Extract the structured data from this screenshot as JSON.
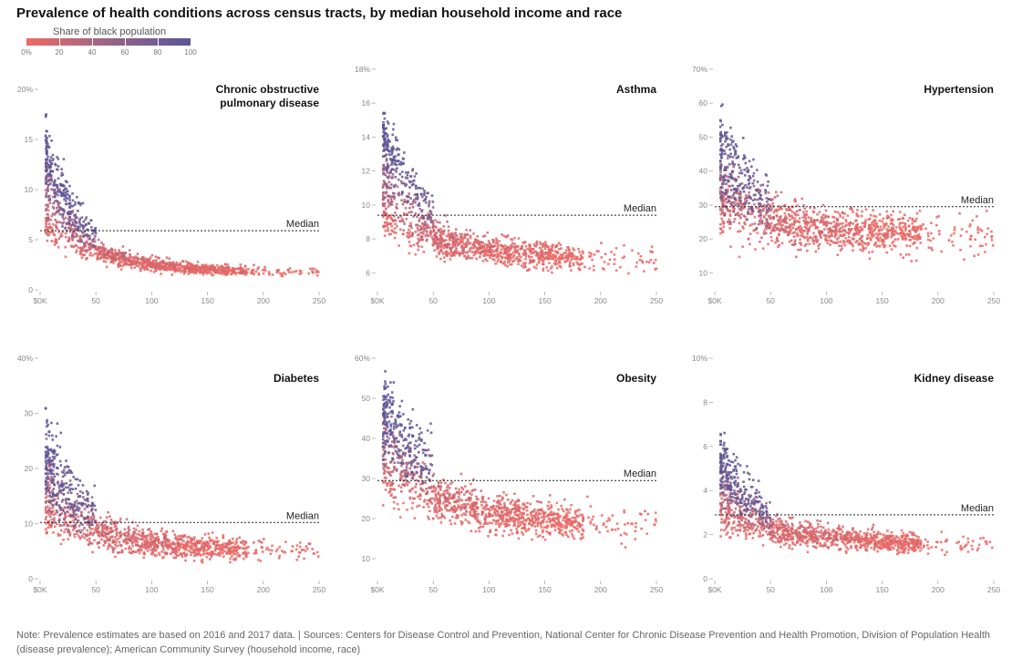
{
  "title": "Prevalence of health conditions across census tracts, by median household income and race",
  "legend": {
    "title": "Share of black population",
    "ticks": [
      "0%",
      "20",
      "40",
      "60",
      "80",
      "100"
    ],
    "colors": {
      "low": "#ef6a63",
      "high": "#5a5596"
    }
  },
  "note": "Note: Prevalence estimates are based on 2016 and 2017 data. | Sources: Centers for Disease Control and Prevention, National Center for Chronic Disease Prevention and Health Promotion, Division of Population Health (disease prevalence); American Community Survey (household income, race)",
  "chart_data": [
    {
      "type": "scatter",
      "title": [
        "Chronic obstructive",
        "pulmonary disease"
      ],
      "median_label": "Median",
      "median": 5.9,
      "ylim": [
        0,
        22
      ],
      "yticks": [
        0,
        5,
        10,
        15,
        20
      ],
      "ytick_labels": [
        "0",
        "5",
        "10",
        "15",
        "20%"
      ],
      "xlim": [
        0,
        250
      ],
      "xticks": [
        0,
        50,
        100,
        150,
        200,
        250
      ],
      "xtick_labels": [
        "$0K",
        "50",
        "100",
        "150",
        "200",
        "250"
      ],
      "model": {
        "a": 3.2,
        "b": 13.0,
        "k": 32,
        "c": 1.6,
        "d": 4.5,
        "k2": 60,
        "s": 0.18
      }
    },
    {
      "type": "scatter",
      "title": [
        "Asthma"
      ],
      "median_label": "Median",
      "median": 9.4,
      "ylim": [
        5,
        18
      ],
      "yticks": [
        6,
        8,
        10,
        12,
        14,
        16,
        18
      ],
      "ytick_labels": [
        "6",
        "8",
        "10",
        "12",
        "14",
        "16",
        "18%"
      ],
      "xlim": [
        0,
        250
      ],
      "xticks": [
        0,
        50,
        100,
        150,
        200,
        250
      ],
      "xtick_labels": [
        "$0K",
        "50",
        "100",
        "150",
        "200",
        "250"
      ],
      "model": {
        "a": 7.6,
        "b": 7.5,
        "k": 42,
        "c": 6.7,
        "d": 2.2,
        "k2": 70,
        "s": 0.08
      }
    },
    {
      "type": "scatter",
      "title": [
        "Hypertension"
      ],
      "median_label": "Median",
      "median": 29.5,
      "ylim": [
        5,
        70
      ],
      "yticks": [
        10,
        20,
        30,
        40,
        50,
        60,
        70
      ],
      "ytick_labels": [
        "10",
        "20",
        "30",
        "40",
        "50",
        "60",
        "70%"
      ],
      "xlim": [
        0,
        250
      ],
      "xticks": [
        0,
        50,
        100,
        150,
        200,
        250
      ],
      "xtick_labels": [
        "$0K",
        "50",
        "100",
        "150",
        "200",
        "250"
      ],
      "model": {
        "a": 24,
        "b": 26,
        "k": 45,
        "c": 21,
        "d": 6,
        "k2": 70,
        "s": 0.2
      }
    },
    {
      "type": "scatter",
      "title": [
        "Diabetes"
      ],
      "median_label": "Median",
      "median": 10.2,
      "ylim": [
        0,
        40
      ],
      "yticks": [
        0,
        10,
        20,
        30,
        40
      ],
      "ytick_labels": [
        "0",
        "10",
        "20",
        "30",
        "40%"
      ],
      "xlim": [
        0,
        250
      ],
      "xticks": [
        0,
        50,
        100,
        150,
        200,
        250
      ],
      "xtick_labels": [
        "$0K",
        "50",
        "100",
        "150",
        "200",
        "250"
      ],
      "model": {
        "a": 8,
        "b": 18,
        "k": 35,
        "c": 5,
        "d": 6,
        "k2": 60,
        "s": 0.25
      }
    },
    {
      "type": "scatter",
      "title": [
        "Obesity"
      ],
      "median_label": "Median",
      "median": 29.5,
      "ylim": [
        5,
        60
      ],
      "yticks": [
        10,
        20,
        30,
        40,
        50,
        60
      ],
      "ytick_labels": [
        "10",
        "20",
        "30",
        "40",
        "50",
        "60%"
      ],
      "xlim": [
        0,
        250
      ],
      "xticks": [
        0,
        50,
        100,
        150,
        200,
        250
      ],
      "xtick_labels": [
        "$0K",
        "50",
        "100",
        "150",
        "200",
        "250"
      ],
      "model": {
        "a": 26,
        "b": 24,
        "k": 55,
        "c": 18,
        "d": 10,
        "k2": 80,
        "s": 0.15
      }
    },
    {
      "type": "scatter",
      "title": [
        "Kidney disease"
      ],
      "median_label": "Median",
      "median": 2.9,
      "ylim": [
        0,
        10
      ],
      "yticks": [
        0,
        2,
        4,
        6,
        8,
        10
      ],
      "ytick_labels": [
        "0",
        "2",
        "4",
        "6",
        "8",
        "10%"
      ],
      "xlim": [
        0,
        250
      ],
      "xticks": [
        0,
        50,
        100,
        150,
        200,
        250
      ],
      "xtick_labels": [
        "$0K",
        "50",
        "100",
        "150",
        "200",
        "250"
      ],
      "model": {
        "a": 2.4,
        "b": 3.4,
        "k": 38,
        "c": 1.5,
        "d": 1.2,
        "k2": 70,
        "s": 0.2
      }
    }
  ]
}
